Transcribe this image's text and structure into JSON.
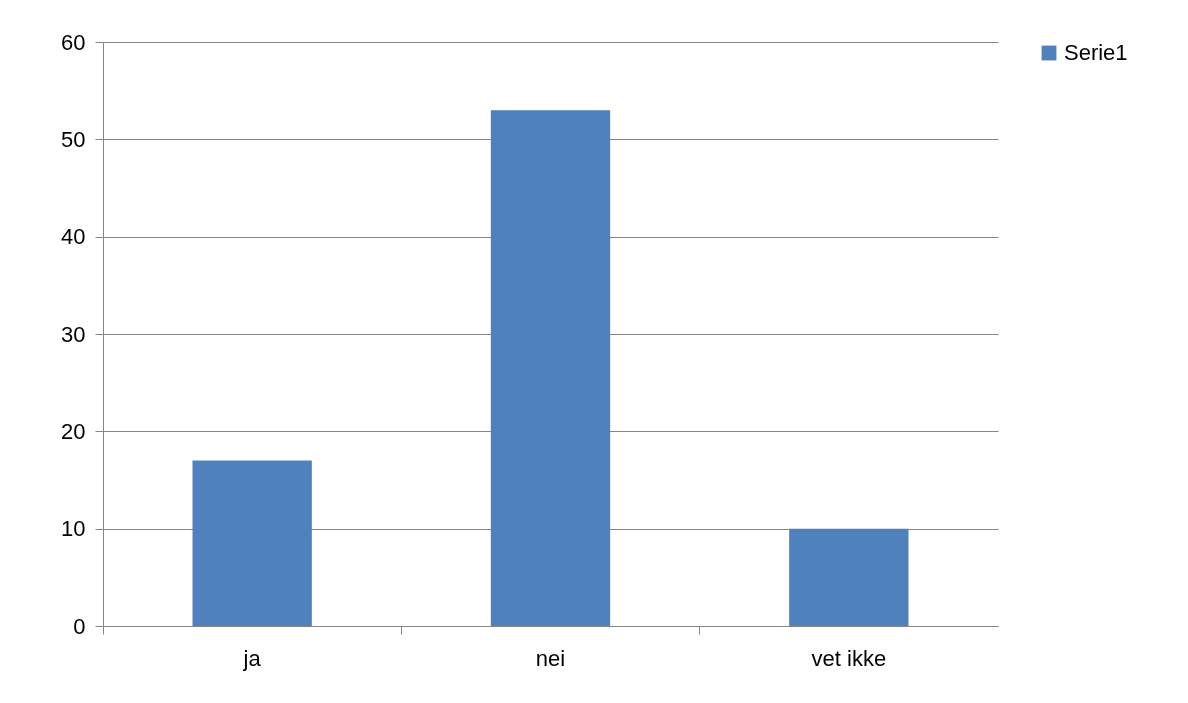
{
  "chart_data": {
    "type": "bar",
    "categories": [
      "ja",
      "nei",
      "vet ikke"
    ],
    "series": [
      {
        "name": "Serie1",
        "color": "#4f81bd",
        "values": [
          17,
          53,
          10
        ]
      }
    ],
    "ylim": [
      0,
      60
    ],
    "yticks": [
      0,
      10,
      20,
      30,
      40,
      50,
      60
    ],
    "grid": "y",
    "legend": "right"
  }
}
